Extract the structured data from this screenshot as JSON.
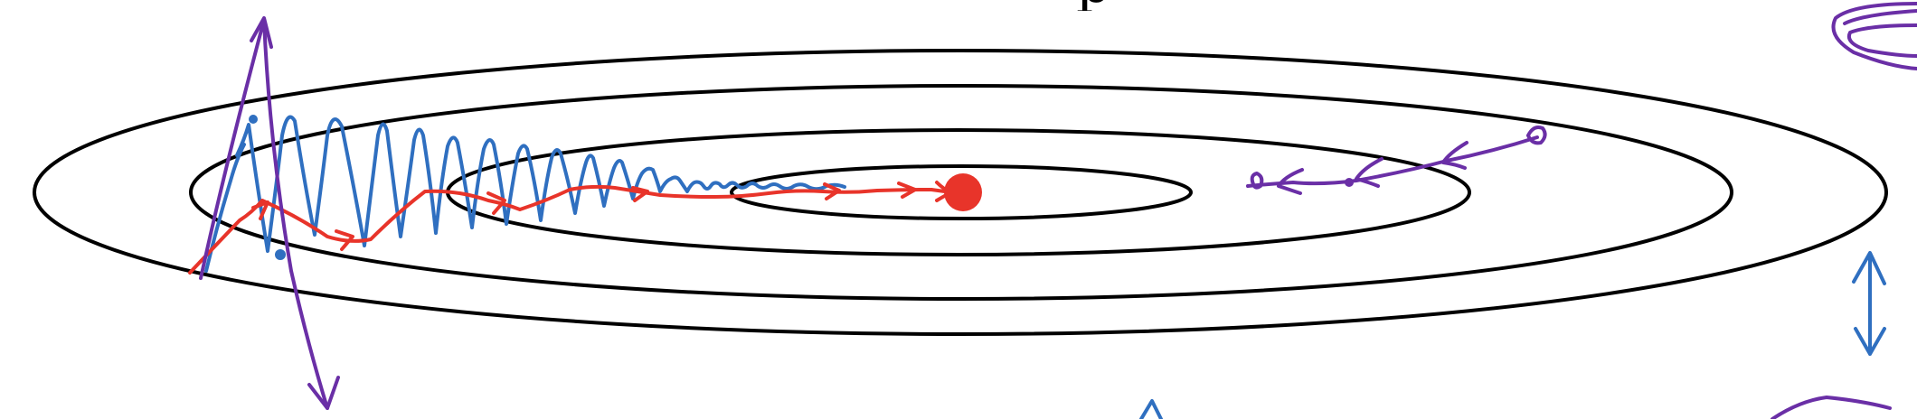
{
  "diagram": {
    "clipped_top_glyph": "p",
    "colors": {
      "contour": "#000000",
      "oscillating_path": "#2f6fc0",
      "smoothed_path": "#e8342a",
      "reverse_path": "#6a2fa6",
      "minimum": "#e8342a"
    },
    "contour_count": 4,
    "paths": [
      {
        "id": "oscillating-path",
        "color": "blue"
      },
      {
        "id": "smoothed-path",
        "color": "red"
      },
      {
        "id": "reverse-path",
        "color": "purple"
      }
    ]
  }
}
